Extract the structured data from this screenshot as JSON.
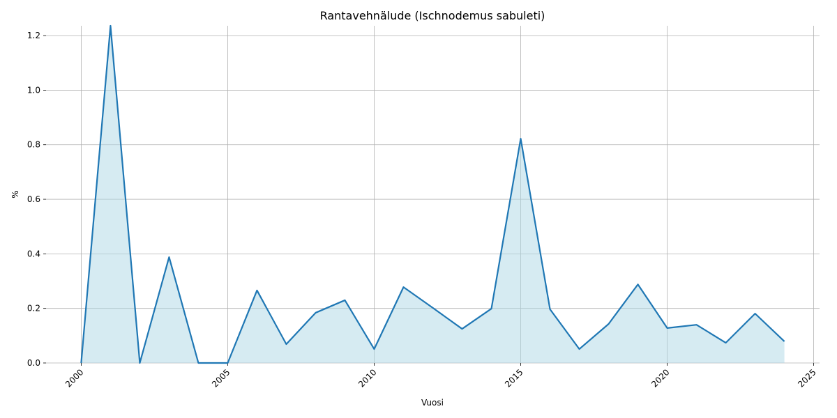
{
  "chart_data": {
    "type": "area_line",
    "title": "Rantavehnälude (Ischnodemus sabuleti)",
    "x_label": "Vuosi",
    "y_label": "%",
    "x": [
      2000,
      2001,
      2002,
      2003,
      2004,
      2005,
      2006,
      2007,
      2008,
      2009,
      2010,
      2011,
      2012,
      2013,
      2014,
      2015,
      2016,
      2017,
      2018,
      2019,
      2020,
      2021,
      2022,
      2023,
      2024
    ],
    "values": [
      0,
      1.236,
      0,
      0.388,
      0,
      0,
      0.266,
      0.069,
      0.184,
      0.23,
      0.051,
      0.278,
      0.202,
      0.125,
      0.199,
      0.822,
      0.197,
      0.051,
      0.143,
      0.288,
      0.128,
      0.14,
      0.074,
      0.181,
      0.079
    ],
    "color": "#1f77b4",
    "fill_color": "#add8e6",
    "xlim": [
      1998.8,
      2025.2
    ],
    "ylim": [
      0,
      1.236
    ],
    "xticks": [
      2000,
      2005,
      2010,
      2015,
      2020,
      2025
    ],
    "yticks": [
      {
        "value": 0,
        "label": "0.0"
      },
      0.2,
      0.4,
      0.6,
      0.8,
      {
        "value": 1,
        "label": "1.0"
      },
      1.2
    ],
    "grid": true
  }
}
